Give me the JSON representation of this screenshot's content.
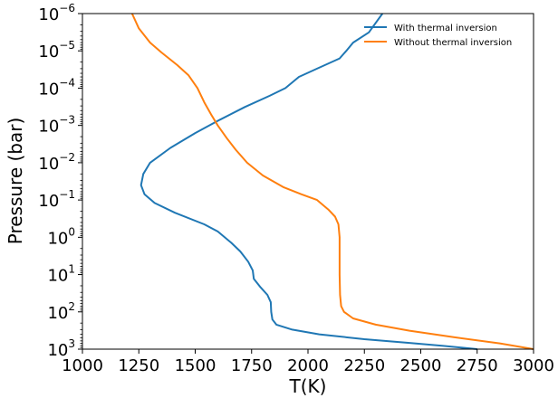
{
  "chart_data": {
    "type": "line",
    "title": "",
    "xlabel": "T(K)",
    "ylabel": "Pressure (bar)",
    "xlim": [
      1000,
      3000
    ],
    "ylim_bar": [
      1e-06,
      1000
    ],
    "y_scale": "log",
    "y_inverted": true,
    "grid": false,
    "legend_position": "top-right",
    "x_ticks": [
      1000,
      1250,
      1500,
      1750,
      2000,
      2250,
      2500,
      2750,
      3000
    ],
    "x_tick_labels": [
      "1000",
      "1250",
      "1500",
      "1750",
      "2000",
      "2250",
      "2500",
      "2750",
      "3000"
    ],
    "y_ticks": [
      1e-06,
      1e-05,
      0.0001,
      0.001,
      0.01,
      0.1,
      1,
      10,
      100,
      1000
    ],
    "y_tick_labels": [
      {
        "base": "10",
        "exp": "−6"
      },
      {
        "base": "10",
        "exp": "−5"
      },
      {
        "base": "10",
        "exp": "−4"
      },
      {
        "base": "10",
        "exp": "−3"
      },
      {
        "base": "10",
        "exp": "−2"
      },
      {
        "base": "10",
        "exp": "−1"
      },
      {
        "base": "10",
        "exp": "0"
      },
      {
        "base": "10",
        "exp": "1"
      },
      {
        "base": "10",
        "exp": "2"
      },
      {
        "base": "10",
        "exp": "3"
      }
    ],
    "series": [
      {
        "name": "With thermal inversion",
        "color": "#1f77b4",
        "points": [
          [
            2330,
            1e-06
          ],
          [
            2270,
            3.2e-06
          ],
          [
            2200,
            6e-06
          ],
          [
            2170,
            1e-05
          ],
          [
            2140,
            1.6e-05
          ],
          [
            2040,
            3e-05
          ],
          [
            1960,
            5e-05
          ],
          [
            1900,
            0.0001
          ],
          [
            1830,
            0.00016
          ],
          [
            1720,
            0.00032
          ],
          [
            1610,
            0.0007
          ],
          [
            1500,
            0.0016
          ],
          [
            1390,
            0.004
          ],
          [
            1300,
            0.01
          ],
          [
            1270,
            0.02
          ],
          [
            1260,
            0.04
          ],
          [
            1275,
            0.07
          ],
          [
            1320,
            0.12
          ],
          [
            1410,
            0.22
          ],
          [
            1540,
            0.45
          ],
          [
            1600,
            0.7
          ],
          [
            1660,
            1.4
          ],
          [
            1700,
            2.4
          ],
          [
            1735,
            4.5
          ],
          [
            1755,
            7.7
          ],
          [
            1760,
            13.0
          ],
          [
            1790,
            22.0
          ],
          [
            1820,
            35.0
          ],
          [
            1835,
            55.0
          ],
          [
            1837,
            100.0
          ],
          [
            1842,
            160.0
          ],
          [
            1860,
            220.0
          ],
          [
            1930,
            300.0
          ],
          [
            2050,
            400.0
          ],
          [
            2250,
            540.0
          ],
          [
            2450,
            680.0
          ],
          [
            2600,
            820.0
          ],
          [
            2750,
            1000.0
          ]
        ]
      },
      {
        "name": "Without thermal inversion",
        "color": "#ff7f0e",
        "points": [
          [
            1220,
            1e-06
          ],
          [
            1250,
            2.5e-06
          ],
          [
            1300,
            6e-06
          ],
          [
            1350,
            1.1e-05
          ],
          [
            1420,
            2.4e-05
          ],
          [
            1470,
            4.5e-05
          ],
          [
            1510,
            0.0001
          ],
          [
            1540,
            0.00024
          ],
          [
            1570,
            0.0005
          ],
          [
            1600,
            0.001
          ],
          [
            1640,
            0.0022
          ],
          [
            1680,
            0.0045
          ],
          [
            1730,
            0.01
          ],
          [
            1800,
            0.022
          ],
          [
            1890,
            0.045
          ],
          [
            1970,
            0.07
          ],
          [
            2040,
            0.1
          ],
          [
            2090,
            0.18
          ],
          [
            2120,
            0.28
          ],
          [
            2135,
            0.45
          ],
          [
            2140,
            1
          ],
          [
            2140,
            10.0
          ],
          [
            2142,
            35.0
          ],
          [
            2147,
            70.0
          ],
          [
            2160,
            100.0
          ],
          [
            2200,
            150.0
          ],
          [
            2300,
            220.0
          ],
          [
            2450,
            320.0
          ],
          [
            2650,
            480.0
          ],
          [
            2850,
            700.0
          ],
          [
            3000,
            1000.0
          ]
        ]
      }
    ]
  }
}
